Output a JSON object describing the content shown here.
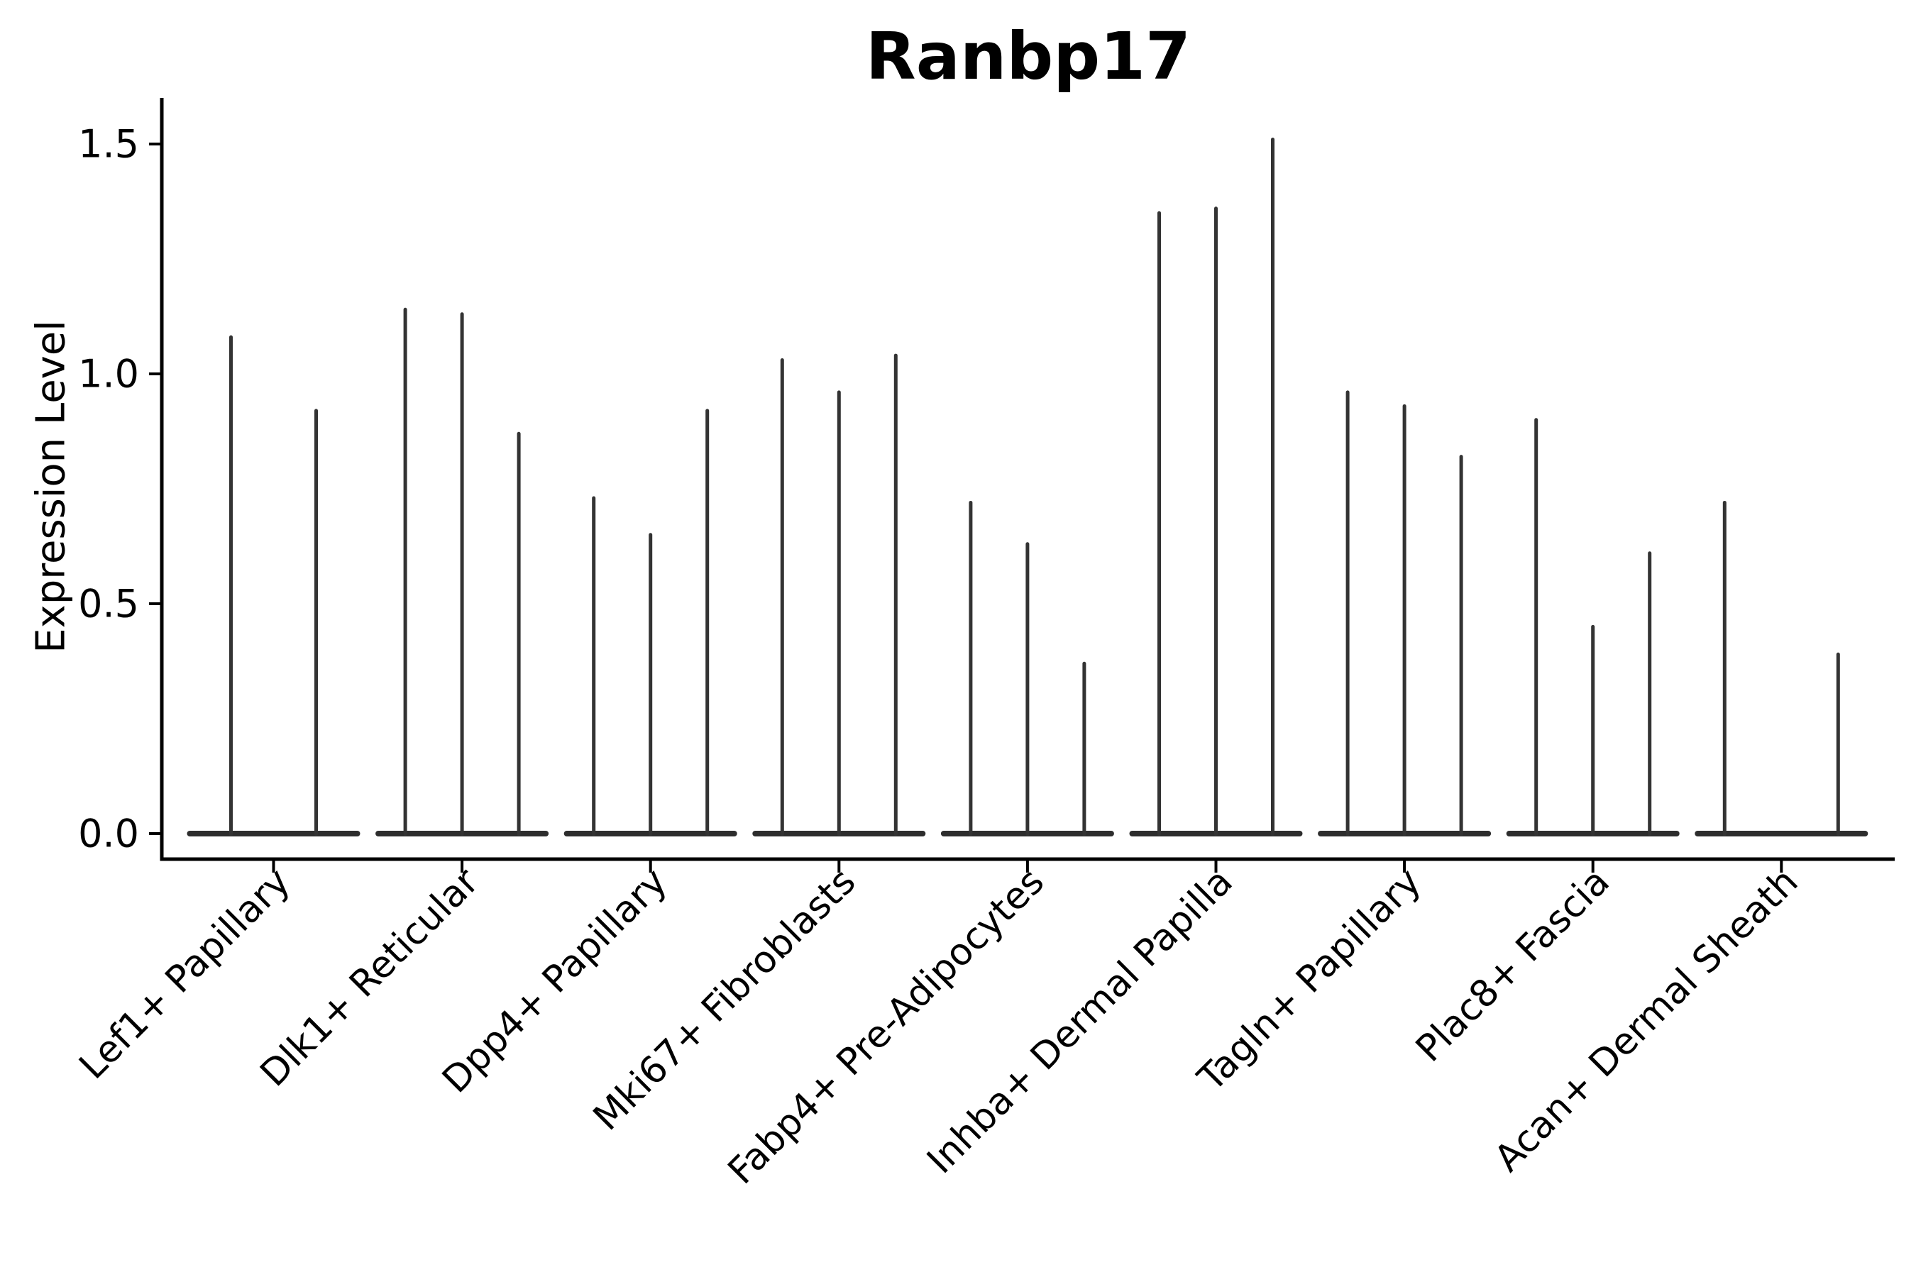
{
  "title": "Ranbp17",
  "chart_data": {
    "type": "violin",
    "title": "Ranbp17",
    "xlabel": "",
    "ylabel": "Expression Level",
    "ylim": [
      -0.05,
      1.6
    ],
    "yticks": [
      0.0,
      0.5,
      1.0,
      1.5
    ],
    "ytick_labels": [
      "0.0",
      "0.5",
      "1.0",
      "1.5"
    ],
    "grid": false,
    "legend": "none",
    "style_note": "sparse single-cell expression violins: flat density at 0 with thin vertical spike to max expression value",
    "categories": [
      "Lef1+ Papillary",
      "Dlk1+ Reticular",
      "Dpp4+ Papillary",
      "Mki67+ Fibroblasts",
      "Fabp4+ Pre-Adipocytes",
      "Inhba+ Dermal Papilla",
      "Tagln+ Papillary",
      "Plac8+ Fascia",
      "Acan+ Dermal Sheath"
    ],
    "groups": [
      {
        "category": "Lef1+ Papillary",
        "violin_peaks": [
          1.08,
          0.92
        ]
      },
      {
        "category": "Dlk1+ Reticular",
        "violin_peaks": [
          1.14,
          1.13,
          0.87
        ]
      },
      {
        "category": "Dpp4+ Papillary",
        "violin_peaks": [
          0.73,
          0.65,
          0.92
        ]
      },
      {
        "category": "Mki67+ Fibroblasts",
        "violin_peaks": [
          1.03,
          0.96,
          1.04
        ]
      },
      {
        "category": "Fabp4+ Pre-Adipocytes",
        "violin_peaks": [
          0.72,
          0.63,
          0.37
        ]
      },
      {
        "category": "Inhba+ Dermal Papilla",
        "violin_peaks": [
          1.35,
          1.36,
          1.51
        ]
      },
      {
        "category": "Tagln+ Papillary",
        "violin_peaks": [
          0.96,
          0.93,
          0.82
        ]
      },
      {
        "category": "Plac8+ Fascia",
        "violin_peaks": [
          0.9,
          0.45,
          0.61
        ]
      },
      {
        "category": "Acan+ Dermal Sheath",
        "violin_peaks": [
          0.72,
          0.0,
          0.39
        ]
      }
    ],
    "colors": {
      "spike": "#333333",
      "baseline": "#2d2d2d",
      "axis": "#000000",
      "text": "#000000",
      "background": "#ffffff"
    }
  }
}
